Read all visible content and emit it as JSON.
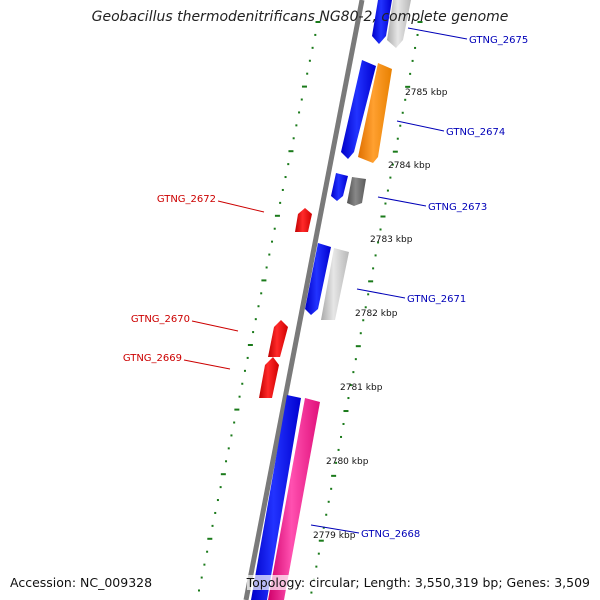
{
  "title": "Geobacillus thermodenitrificans NG80-2, complete genome",
  "footer": {
    "accession": "Accession: NC_009328",
    "summary": "Topology: circular; Length: 3,550,319 bp; Genes: 3,509"
  },
  "colors": {
    "axis": "#7a7a7a",
    "forward_label": "#0000b8",
    "reverse_label": "#cc0000",
    "tick": "#1a7a1a",
    "blue": "#0000ee",
    "orange": "#ff8c00",
    "lightgray": "#c8c8c8",
    "darkgray": "#6a6a6a",
    "red": "#ee0000",
    "pink": "#ff1493"
  },
  "ticks": [
    {
      "label": "2785 kbp"
    },
    {
      "label": "2784 kbp"
    },
    {
      "label": "2783 kbp"
    },
    {
      "label": "2782 kbp"
    },
    {
      "label": "2781 kbp"
    },
    {
      "label": "2780 kbp"
    },
    {
      "label": "2779 kbp"
    }
  ],
  "genes": [
    {
      "name": "GTNG_2675",
      "strand": "forward"
    },
    {
      "name": "GTNG_2674",
      "strand": "forward"
    },
    {
      "name": "GTNG_2673",
      "strand": "forward"
    },
    {
      "name": "GTNG_2672",
      "strand": "reverse"
    },
    {
      "name": "GTNG_2671",
      "strand": "forward"
    },
    {
      "name": "GTNG_2670",
      "strand": "reverse"
    },
    {
      "name": "GTNG_2669",
      "strand": "reverse"
    },
    {
      "name": "GTNG_2668",
      "strand": "forward"
    }
  ]
}
